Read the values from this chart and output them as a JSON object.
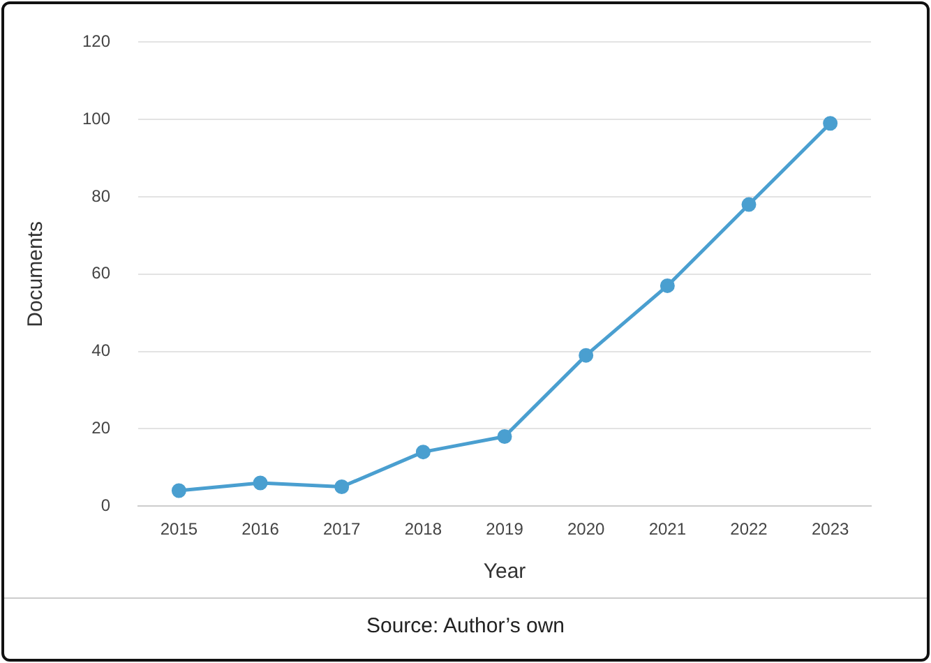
{
  "chart_data": {
    "type": "line",
    "xlabel": "Year",
    "ylabel": "Documents",
    "categories": [
      "2015",
      "2016",
      "2017",
      "2018",
      "2019",
      "2020",
      "2021",
      "2022",
      "2023"
    ],
    "series": [
      {
        "color": "#4a9fd0",
        "values": [
          4,
          6,
          5,
          14,
          18,
          39,
          57,
          78,
          99
        ]
      }
    ],
    "ylim": [
      0,
      120
    ],
    "yticks": [
      0,
      20,
      40,
      60,
      80,
      100,
      120
    ],
    "grid": "y",
    "legend": false,
    "marker": "circle",
    "line_style": "solid",
    "annotations": [
      "Source: Author’s own"
    ]
  }
}
